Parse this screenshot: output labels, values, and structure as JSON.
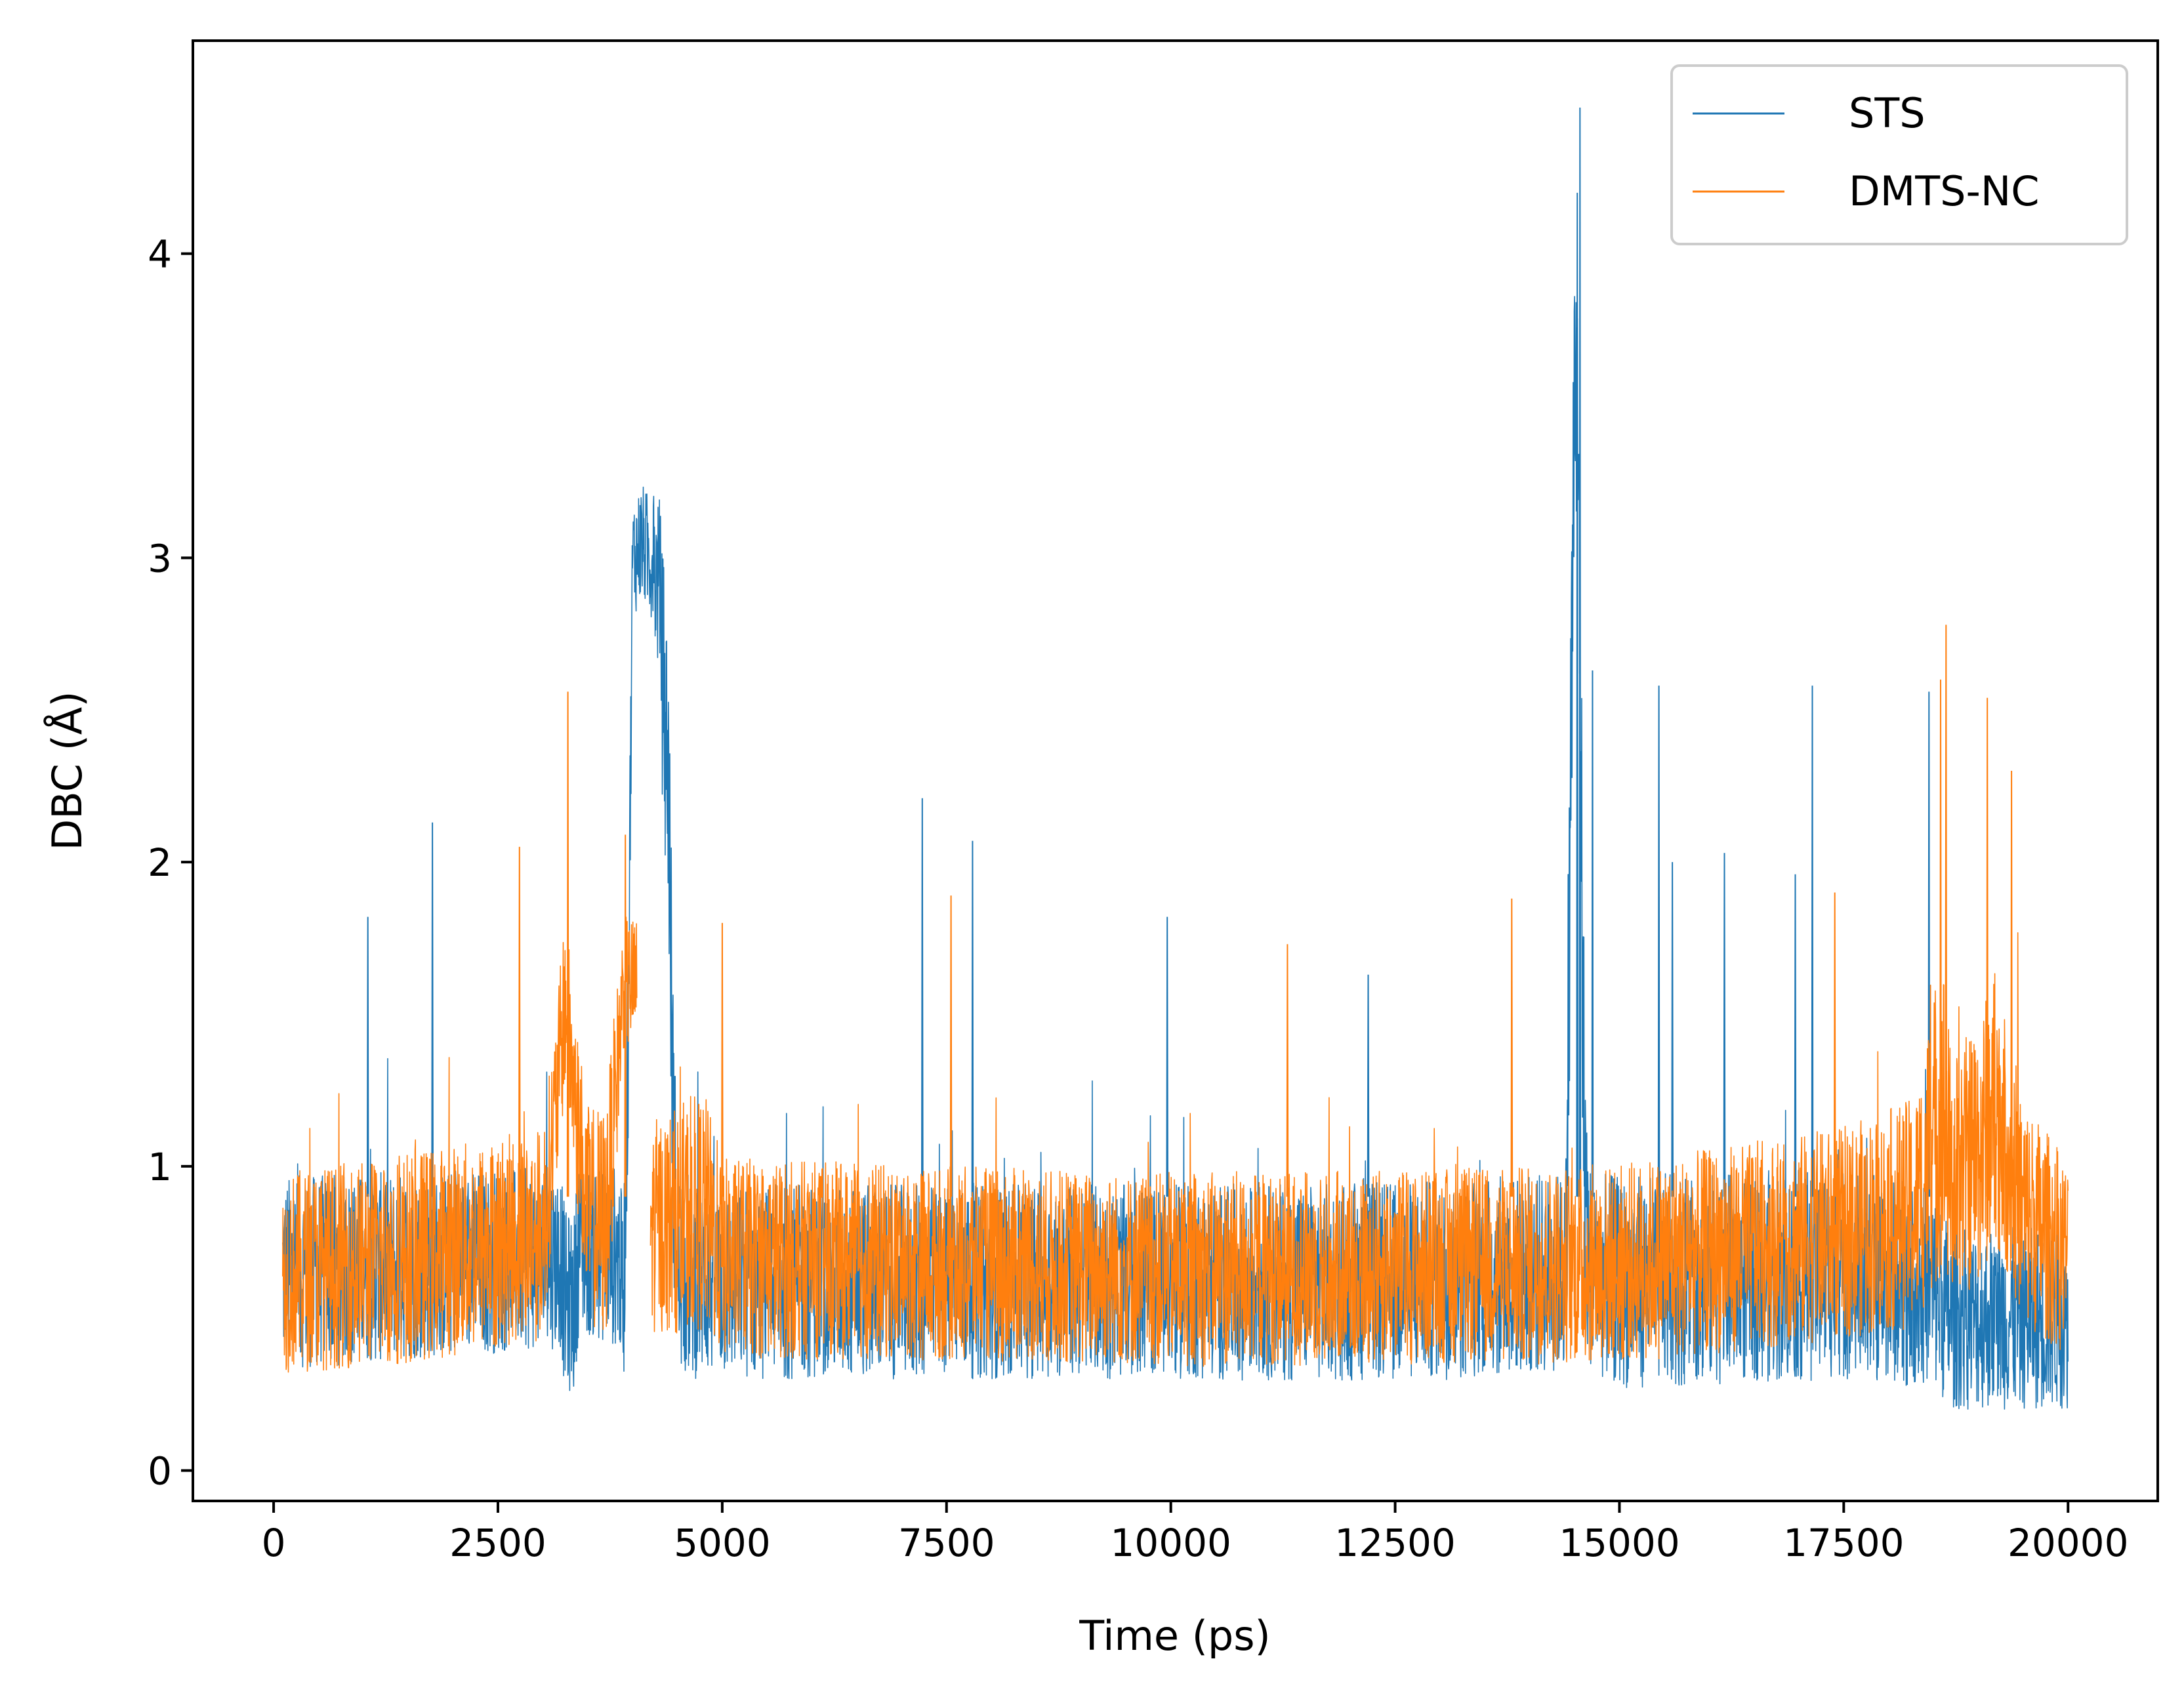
{
  "chart_data": {
    "type": "line",
    "title": "",
    "xlabel": "Time (ps)",
    "ylabel": "DBC (Å)",
    "xlim": [
      -900,
      21000
    ],
    "ylim": [
      -0.1,
      4.7
    ],
    "x_range": [
      100,
      20000
    ],
    "x_ticks": [
      0,
      2500,
      5000,
      7500,
      10000,
      12500,
      15000,
      17500,
      20000
    ],
    "x_tick_labels": [
      "0",
      "2500",
      "5000",
      "7500",
      "10000",
      "12500",
      "15000",
      "17500",
      "20000"
    ],
    "y_ticks": [
      0,
      1,
      2,
      3,
      4
    ],
    "y_tick_labels": [
      "0",
      "1",
      "2",
      "3",
      "4"
    ],
    "grid": false,
    "legend": {
      "position": "top-right"
    },
    "series": [
      {
        "name": "STS",
        "color": "#1f77b4",
        "segments": [
          {
            "x": [
              100,
              3200,
              3250,
              3350,
              3400,
              3850,
              3900,
              3950,
              4000,
              4100,
              4200,
              4300,
              4350,
              4400,
              4450,
              4500,
              5000,
              7500,
              10000,
              12500,
              14400,
              14450,
              14500,
              14550,
              14600,
              14650,
              14700,
              15000,
              17500,
              18500,
              18700,
              19000,
              19500,
              20000
            ],
            "center": [
              0.65,
              0.7,
              0.55,
              0.55,
              0.75,
              0.7,
              0.55,
              1.4,
              3.0,
              3.05,
              3.0,
              2.9,
              2.5,
              2.3,
              1.2,
              0.65,
              0.62,
              0.62,
              0.62,
              0.62,
              0.65,
              2.0,
              3.6,
              3.2,
              1.2,
              0.7,
              0.65,
              0.62,
              0.65,
              0.6,
              0.5,
              0.5,
              0.5,
              0.5
            ],
            "spread": [
              0.32,
              0.3,
              0.3,
              0.3,
              0.3,
              0.3,
              0.3,
              0.4,
              0.2,
              0.2,
              0.2,
              0.3,
              0.5,
              0.5,
              0.5,
              0.35,
              0.32,
              0.32,
              0.32,
              0.33,
              0.33,
              0.9,
              0.5,
              0.6,
              0.7,
              0.35,
              0.33,
              0.35,
              0.35,
              0.33,
              0.3,
              0.3,
              0.3,
              0.3
            ]
          }
        ],
        "peaks": [
          {
            "x": 1050,
            "y": 1.82
          },
          {
            "x": 1770,
            "y": 2.13
          },
          {
            "x": 7230,
            "y": 2.21
          },
          {
            "x": 7790,
            "y": 2.07
          },
          {
            "x": 9960,
            "y": 1.82
          },
          {
            "x": 12200,
            "y": 1.63
          },
          {
            "x": 14560,
            "y": 4.48
          },
          {
            "x": 14530,
            "y": 4.2
          },
          {
            "x": 14700,
            "y": 2.63
          },
          {
            "x": 15440,
            "y": 2.58
          },
          {
            "x": 15590,
            "y": 2.0
          },
          {
            "x": 16170,
            "y": 2.03
          },
          {
            "x": 16960,
            "y": 1.96
          },
          {
            "x": 17150,
            "y": 2.58
          },
          {
            "x": 18450,
            "y": 2.56
          }
        ]
      },
      {
        "name": "DMTS-NC",
        "color": "#ff7f0e",
        "segments": [
          {
            "x": [
              100,
              1500,
              2500,
              3000,
              3150,
              3250,
              3350,
              3500,
              3700,
              3900,
              4050
            ],
            "center": [
              0.65,
              0.7,
              0.75,
              0.78,
              1.2,
              1.55,
              1.25,
              0.85,
              0.8,
              1.6,
              1.6
            ],
            "spread": [
              0.33,
              0.35,
              0.35,
              0.35,
              0.3,
              0.3,
              0.3,
              0.35,
              0.4,
              0.22,
              0.22
            ]
          },
          {
            "x": [
              4200,
              4800,
              5000,
              7500,
              10000,
              12500,
              15000,
              17500,
              18300,
              18600,
              18700,
              19000,
              19200,
              19500,
              20000
            ],
            "center": [
              0.8,
              0.85,
              0.7,
              0.68,
              0.66,
              0.67,
              0.68,
              0.78,
              0.85,
              1.2,
              0.95,
              1.05,
              1.2,
              0.85,
              0.7
            ],
            "spread": [
              0.35,
              0.4,
              0.33,
              0.32,
              0.32,
              0.32,
              0.33,
              0.35,
              0.38,
              0.55,
              0.4,
              0.45,
              0.45,
              0.38,
              0.32
            ]
          }
        ],
        "peaks": [
          {
            "x": 3280,
            "y": 2.56
          },
          {
            "x": 2740,
            "y": 2.05
          },
          {
            "x": 3920,
            "y": 2.09
          },
          {
            "x": 5000,
            "y": 1.8
          },
          {
            "x": 7550,
            "y": 1.89
          },
          {
            "x": 11300,
            "y": 1.73
          },
          {
            "x": 13800,
            "y": 1.88
          },
          {
            "x": 17400,
            "y": 1.9
          },
          {
            "x": 18640,
            "y": 2.78
          },
          {
            "x": 18580,
            "y": 2.6
          },
          {
            "x": 19100,
            "y": 2.54
          },
          {
            "x": 19370,
            "y": 2.3
          }
        ]
      }
    ]
  }
}
